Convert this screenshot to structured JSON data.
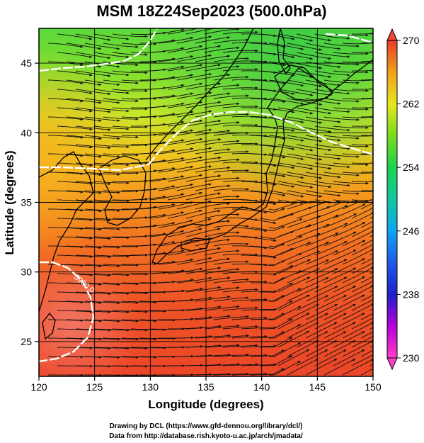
{
  "title": "MSM 18Z24Sep2023 (500.0hPa)",
  "x_axis": {
    "label": "Longitude (degrees)",
    "min": 120,
    "max": 150,
    "ticks": [
      120,
      125,
      130,
      135,
      140,
      145,
      150
    ]
  },
  "y_axis": {
    "label": "Latitude  (degrees)",
    "min": 22.5,
    "max": 47.5,
    "ticks": [
      25,
      30,
      35,
      40,
      45
    ]
  },
  "colorbar": {
    "min": 230,
    "max": 270,
    "tick_labels": [
      "270",
      "262",
      "254",
      "246",
      "238",
      "230"
    ],
    "tick_values": [
      270,
      262,
      254,
      246,
      238,
      230
    ],
    "stops": [
      {
        "value": 230,
        "color": "#ff3fc8"
      },
      {
        "value": 234,
        "color": "#b400d6"
      },
      {
        "value": 238,
        "color": "#2020c8"
      },
      {
        "value": 242,
        "color": "#1e5ae6"
      },
      {
        "value": 246,
        "color": "#10a4f0"
      },
      {
        "value": 250,
        "color": "#10c8a0"
      },
      {
        "value": 254,
        "color": "#1ed250"
      },
      {
        "value": 258,
        "color": "#78dc1e"
      },
      {
        "value": 262,
        "color": "#e6e61e"
      },
      {
        "value": 266,
        "color": "#f0a01e"
      },
      {
        "value": 270,
        "color": "#e63c28"
      }
    ]
  },
  "contour_label": "5900.0",
  "credits": [
    "Drawing by DCL (https://www.gfd-dennou.org/library/dcl/)",
    "Data from http://database.rish.kyoto-u.ac.jp/arch/jmadata/"
  ]
}
